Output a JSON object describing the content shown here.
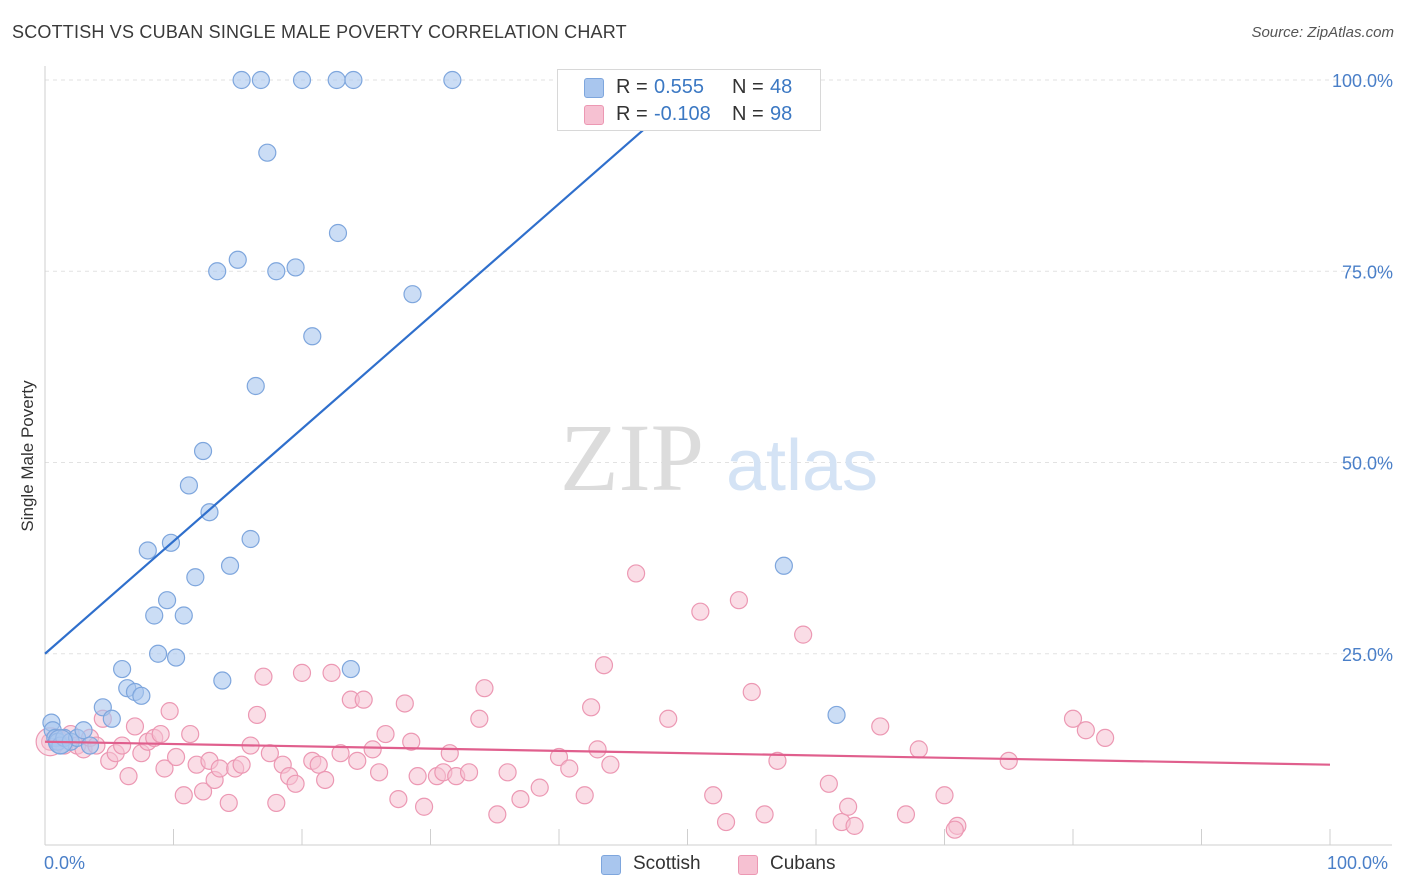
{
  "title": "SCOTTISH VS CUBAN SINGLE MALE POVERTY CORRELATION CHART",
  "source": "Source: ZipAtlas.com",
  "watermark": {
    "zip": "ZIP",
    "atlas": "atlas"
  },
  "legend_top": {
    "rows": [
      {
        "r_label": "R =",
        "r_value": "0.555",
        "n_label": "N =",
        "n_value": "48"
      },
      {
        "r_label": "R =",
        "r_value": "-0.108",
        "n_label": "N =",
        "n_value": "98"
      }
    ]
  },
  "legend_bottom": {
    "items": [
      "Scottish",
      "Cubans"
    ]
  },
  "colors": {
    "scottish_fill": "#a9c6ee",
    "scottish_stroke": "#7ea6dd",
    "scottish_line": "#2f6fcc",
    "cubans_fill": "#f6c1d2",
    "cubans_stroke": "#ec98b3",
    "cubans_line": "#e05f8d",
    "axis_text": "#4a7fc8",
    "grid": "#e2e2e2"
  },
  "chart_data": {
    "type": "scatter",
    "title": "SCOTTISH VS CUBAN SINGLE MALE POVERTY CORRELATION CHART",
    "xlabel": "",
    "ylabel": "Single Male Poverty",
    "xlim": [
      0,
      100
    ],
    "ylim": [
      0,
      100
    ],
    "x_tick_labels": [
      "0.0%",
      "100.0%"
    ],
    "y_tick_labels": [
      "25.0%",
      "50.0%",
      "75.0%",
      "100.0%"
    ],
    "y_ticks": [
      25,
      50,
      75,
      100
    ],
    "grid": true,
    "legend_position": "top-center",
    "series": [
      {
        "name": "Scottish",
        "points": [
          [
            0.5,
            16
          ],
          [
            0.6,
            15
          ],
          [
            0.8,
            14
          ],
          [
            1.0,
            13.5
          ],
          [
            1.2,
            13
          ],
          [
            1.5,
            14
          ],
          [
            2.0,
            13.5
          ],
          [
            2.5,
            14
          ],
          [
            3.0,
            15
          ],
          [
            3.5,
            13
          ],
          [
            4.5,
            18
          ],
          [
            5.2,
            16.5
          ],
          [
            6.0,
            23
          ],
          [
            6.4,
            20.5
          ],
          [
            7.0,
            20
          ],
          [
            7.5,
            19.5
          ],
          [
            8.0,
            38.5
          ],
          [
            8.5,
            30
          ],
          [
            8.8,
            25
          ],
          [
            9.8,
            39.5
          ],
          [
            9.5,
            32
          ],
          [
            10.2,
            24.5
          ],
          [
            10.8,
            30
          ],
          [
            11.2,
            47
          ],
          [
            11.7,
            35
          ],
          [
            12.3,
            51.5
          ],
          [
            12.8,
            43.5
          ],
          [
            13.4,
            75
          ],
          [
            13.8,
            21.5
          ],
          [
            14.4,
            36.5
          ],
          [
            15.0,
            76.5
          ],
          [
            16.0,
            40
          ],
          [
            16.4,
            60
          ],
          [
            17.3,
            90.5
          ],
          [
            18.0,
            75
          ],
          [
            19.5,
            75.5
          ],
          [
            20.8,
            66.5
          ],
          [
            22.8,
            80
          ],
          [
            23.8,
            23
          ],
          [
            28.6,
            72
          ],
          [
            15.3,
            100
          ],
          [
            16.8,
            100
          ],
          [
            20.0,
            100
          ],
          [
            22.7,
            100
          ],
          [
            24.0,
            100
          ],
          [
            31.7,
            100
          ],
          [
            57.5,
            36.5
          ],
          [
            61.6,
            17
          ]
        ]
      },
      {
        "name": "Cubans",
        "points": [
          [
            0.4,
            13.5
          ],
          [
            1.0,
            14
          ],
          [
            1.5,
            13
          ],
          [
            2.0,
            14.5
          ],
          [
            2.5,
            13
          ],
          [
            3.0,
            12.5
          ],
          [
            3.5,
            14
          ],
          [
            4.0,
            13
          ],
          [
            4.5,
            16.5
          ],
          [
            5.0,
            11
          ],
          [
            5.5,
            12
          ],
          [
            6.0,
            13
          ],
          [
            6.5,
            9
          ],
          [
            7.0,
            15.5
          ],
          [
            7.5,
            12
          ],
          [
            8.0,
            13.5
          ],
          [
            8.5,
            14
          ],
          [
            9.0,
            14.5
          ],
          [
            9.3,
            10
          ],
          [
            9.7,
            17.5
          ],
          [
            10.2,
            11.5
          ],
          [
            10.8,
            6.5
          ],
          [
            11.3,
            14.5
          ],
          [
            11.8,
            10.5
          ],
          [
            12.3,
            7
          ],
          [
            12.8,
            11
          ],
          [
            13.2,
            8.5
          ],
          [
            13.6,
            10
          ],
          [
            14.3,
            5.5
          ],
          [
            14.8,
            10
          ],
          [
            15.3,
            10.5
          ],
          [
            16.0,
            13
          ],
          [
            16.5,
            17
          ],
          [
            17.0,
            22
          ],
          [
            17.5,
            12
          ],
          [
            18.0,
            5.5
          ],
          [
            18.5,
            10.5
          ],
          [
            19.0,
            9
          ],
          [
            19.5,
            8
          ],
          [
            20.0,
            22.5
          ],
          [
            20.8,
            11
          ],
          [
            21.3,
            10.5
          ],
          [
            21.8,
            8.5
          ],
          [
            22.3,
            22.5
          ],
          [
            23.0,
            12
          ],
          [
            23.8,
            19
          ],
          [
            24.3,
            11
          ],
          [
            24.8,
            19
          ],
          [
            25.5,
            12.5
          ],
          [
            26.0,
            9.5
          ],
          [
            26.5,
            14.5
          ],
          [
            27.5,
            6
          ],
          [
            28.0,
            18.5
          ],
          [
            28.5,
            13.5
          ],
          [
            29.0,
            9
          ],
          [
            29.5,
            5
          ],
          [
            30.5,
            9
          ],
          [
            31.0,
            9.5
          ],
          [
            31.5,
            12
          ],
          [
            32.0,
            9
          ],
          [
            33.0,
            9.5
          ],
          [
            33.8,
            16.5
          ],
          [
            34.2,
            20.5
          ],
          [
            35.2,
            4
          ],
          [
            36.0,
            9.5
          ],
          [
            37.0,
            6
          ],
          [
            38.5,
            7.5
          ],
          [
            40.0,
            11.5
          ],
          [
            40.8,
            10
          ],
          [
            42.0,
            6.5
          ],
          [
            42.5,
            18
          ],
          [
            43.0,
            12.5
          ],
          [
            43.5,
            23.5
          ],
          [
            44.0,
            10.5
          ],
          [
            46.0,
            35.5
          ],
          [
            48.5,
            16.5
          ],
          [
            51.0,
            30.5
          ],
          [
            52.0,
            6.5
          ],
          [
            53.0,
            3
          ],
          [
            54.0,
            32
          ],
          [
            55.0,
            20
          ],
          [
            56.0,
            4
          ],
          [
            57.0,
            11
          ],
          [
            59.0,
            27.5
          ],
          [
            61.0,
            8
          ],
          [
            62.0,
            3
          ],
          [
            62.5,
            5
          ],
          [
            63.0,
            2.5
          ],
          [
            65.0,
            15.5
          ],
          [
            67.0,
            4
          ],
          [
            68.0,
            12.5
          ],
          [
            70.0,
            6.5
          ],
          [
            71.0,
            2.5
          ],
          [
            70.8,
            2
          ],
          [
            75.0,
            11
          ],
          [
            80.0,
            16.5
          ],
          [
            81.0,
            15
          ],
          [
            82.5,
            14
          ]
        ]
      }
    ],
    "trend_lines": [
      {
        "name": "Scottish",
        "x": [
          0,
          51
        ],
        "y": [
          25,
          100
        ]
      },
      {
        "name": "Cubans",
        "x": [
          0,
          100
        ],
        "y": [
          13.5,
          10.5
        ]
      }
    ]
  }
}
